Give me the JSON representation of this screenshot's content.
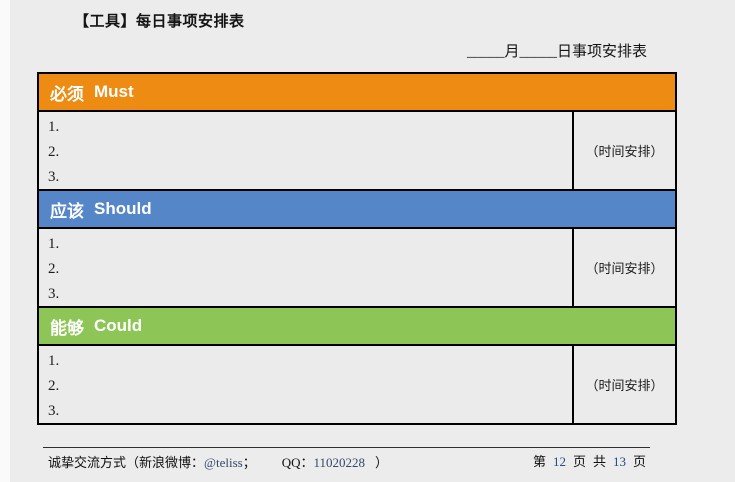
{
  "header": {
    "doc_title": "【工具】每日事项安排表",
    "table_caption": "_____月_____日事项安排表"
  },
  "table": {
    "time_label": "（时间安排）",
    "sections": [
      {
        "id": "must",
        "zh": "必须",
        "en": "Must",
        "color": "#ED8B13",
        "items": [
          "1.",
          "2.",
          "3."
        ]
      },
      {
        "id": "should",
        "zh": "应该",
        "en": "Should",
        "color": "#5586C8",
        "items": [
          "1.",
          "2.",
          "3."
        ]
      },
      {
        "id": "could",
        "zh": "能够",
        "en": "Could",
        "color": "#8DC656",
        "items": [
          "1.",
          "2.",
          "3."
        ]
      }
    ]
  },
  "footer": {
    "contact": {
      "prefix": "诚挚交流方式（新浪微博：",
      "weibo": "@teliss",
      "semicolon": "；",
      "qq_label": "QQ：",
      "qq_number": "11020228",
      "close": "）"
    },
    "page": {
      "label_di": "第",
      "current": "12",
      "label_ye1": "页",
      "label_gong": "共",
      "total": "13",
      "label_ye2": "页"
    }
  },
  "colors": {
    "must_orange": "#ED8B13",
    "should_blue": "#5586C8",
    "could_green": "#8DC656",
    "band_text": "#FFFFFF",
    "page_background": "#ECECEC",
    "cell_background": "#EBEBEB",
    "table_border": "#000000"
  }
}
